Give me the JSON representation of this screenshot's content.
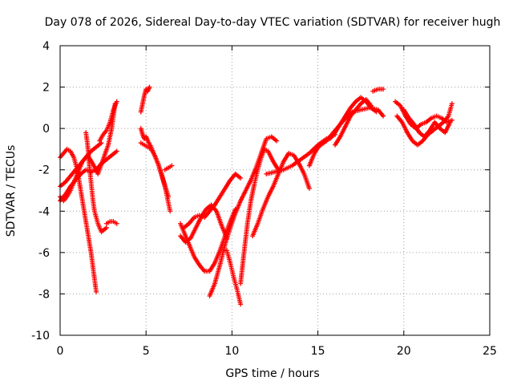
{
  "chart_data": {
    "type": "scatter",
    "title": "Day 078 of 2026, Sidereal Day-to-day VTEC variation (SDTVAR) for receiver hugh",
    "xlabel": "GPS time / hours",
    "ylabel": "SDTVAR / TECUs",
    "xlim": [
      0,
      25
    ],
    "ylim": [
      -10,
      4
    ],
    "xticks": [
      "0",
      "5",
      "10",
      "15",
      "20",
      "25"
    ],
    "yticks": [
      "4",
      "2",
      "0",
      "-2",
      "-4",
      "-6",
      "-8",
      "-10"
    ],
    "grid": true,
    "marker": "+",
    "color": "#ff0000",
    "series": [
      {
        "x": [
          0.0,
          0.3,
          0.6,
          0.9,
          1.2,
          1.5,
          1.8,
          2.1,
          2.4,
          2.7,
          3.0,
          3.3
        ],
        "y": [
          -3.5,
          -3.2,
          -2.8,
          -2.5,
          -2.2,
          -2.0,
          -2.1,
          -2.0,
          -1.7,
          -1.5,
          -1.3,
          -1.1
        ]
      },
      {
        "x": [
          0.0,
          0.2,
          0.4,
          0.6,
          0.8,
          1.0,
          1.2,
          1.5,
          1.8,
          2.1
        ],
        "y": [
          -1.4,
          -1.2,
          -1.0,
          -1.1,
          -1.4,
          -2.0,
          -3.0,
          -4.5,
          -6.0,
          -7.9
        ]
      },
      {
        "x": [
          0.0,
          0.3,
          0.6,
          0.9,
          1.2,
          1.5,
          1.8,
          2.1,
          2.4
        ],
        "y": [
          -2.8,
          -2.6,
          -2.3,
          -2.0,
          -1.7,
          -1.4,
          -1.1,
          -0.9,
          -0.7
        ]
      },
      {
        "x": [
          0.0,
          0.2,
          0.4,
          0.6,
          0.8,
          1.0,
          1.3,
          1.6,
          1.9,
          2.2,
          2.5,
          2.8,
          3.0,
          3.2
        ],
        "y": [
          -3.3,
          -3.5,
          -3.3,
          -3.0,
          -2.6,
          -2.2,
          -1.6,
          -1.3,
          -1.7,
          -2.2,
          -1.5,
          -0.8,
          0.0,
          1.2
        ]
      },
      {
        "x": [
          1.5,
          1.6,
          1.7,
          1.8,
          1.9,
          2.0,
          2.2,
          2.4,
          2.7
        ],
        "y": [
          -0.2,
          -0.8,
          -1.8,
          -2.6,
          -3.4,
          -4.0,
          -4.6,
          -5.0,
          -4.8
        ]
      },
      {
        "x": [
          2.7,
          2.9,
          3.1,
          3.3
        ],
        "y": [
          -4.6,
          -4.5,
          -4.5,
          -4.6
        ]
      },
      {
        "x": [
          2.3,
          2.5,
          2.7,
          2.9,
          3.1,
          3.3
        ],
        "y": [
          -0.6,
          -0.3,
          -0.1,
          0.3,
          0.9,
          1.3
        ]
      },
      {
        "x": [
          4.7,
          4.8,
          4.9,
          5.0,
          5.1,
          5.2
        ],
        "y": [
          0.8,
          1.2,
          1.6,
          1.9,
          1.8,
          2.0
        ]
      },
      {
        "x": [
          4.7,
          4.8,
          4.9,
          5.0,
          5.1,
          5.3,
          5.5,
          5.7,
          6.0,
          6.3
        ],
        "y": [
          0.0,
          -0.3,
          -0.5,
          -0.4,
          -0.6,
          -0.9,
          -1.3,
          -1.7,
          -2.5,
          -3.3
        ]
      },
      {
        "x": [
          4.7,
          4.9,
          5.1,
          5.3,
          5.5,
          5.7,
          5.9,
          6.1,
          6.4
        ],
        "y": [
          -0.7,
          -0.8,
          -0.9,
          -1.0,
          -1.3,
          -1.7,
          -2.2,
          -2.8,
          -4.0
        ]
      },
      {
        "x": [
          6.1,
          6.3,
          6.5
        ],
        "y": [
          -2.0,
          -1.9,
          -1.8
        ]
      },
      {
        "x": [
          7.0,
          7.2,
          7.5,
          7.8,
          8.1,
          8.4,
          8.7,
          9.0,
          9.3,
          9.6,
          9.9,
          10.2
        ],
        "y": [
          -4.6,
          -5.0,
          -5.6,
          -6.2,
          -6.6,
          -6.9,
          -6.9,
          -6.5,
          -5.9,
          -5.2,
          -4.5,
          -3.9
        ]
      },
      {
        "x": [
          7.2,
          7.5,
          7.8,
          8.1,
          8.4,
          8.7,
          9.0,
          9.3,
          9.6,
          9.9,
          10.2,
          10.5
        ],
        "y": [
          -4.8,
          -4.6,
          -4.3,
          -4.2,
          -4.3,
          -4.0,
          -3.7,
          -3.3,
          -2.9,
          -2.5,
          -2.2,
          -2.4
        ]
      },
      {
        "x": [
          7.0,
          7.3,
          7.6,
          7.9,
          8.2,
          8.5,
          8.8,
          9.1,
          9.4,
          9.7
        ],
        "y": [
          -5.2,
          -5.5,
          -5.3,
          -4.8,
          -4.3,
          -3.9,
          -3.7,
          -4.0,
          -4.7,
          -5.3
        ]
      },
      {
        "x": [
          9.7,
          9.9,
          10.1,
          10.3,
          10.5
        ],
        "y": [
          -5.9,
          -6.5,
          -7.2,
          -7.8,
          -8.5
        ]
      },
      {
        "x": [
          8.7,
          9.0,
          9.3,
          9.6,
          9.9,
          10.2,
          10.5,
          10.8,
          11.1,
          11.4,
          11.7,
          12.0,
          12.3,
          12.6
        ],
        "y": [
          -8.1,
          -7.5,
          -6.6,
          -5.6,
          -4.8,
          -4.1,
          -3.5,
          -3.0,
          -2.5,
          -1.9,
          -1.2,
          -0.5,
          -0.4,
          -0.6
        ]
      },
      {
        "x": [
          10.5,
          10.7,
          10.9,
          11.1,
          11.3,
          11.5,
          11.7,
          11.9,
          12.1,
          12.4,
          12.7
        ],
        "y": [
          -7.5,
          -6.0,
          -4.6,
          -3.5,
          -2.7,
          -2.0,
          -1.4,
          -1.0,
          -1.1,
          -1.6,
          -2.0
        ]
      },
      {
        "x": [
          11.2,
          11.5,
          11.8,
          12.1,
          12.4,
          12.7,
          13.0,
          13.3,
          13.6,
          13.9,
          14.2,
          14.5
        ],
        "y": [
          -5.2,
          -4.6,
          -3.9,
          -3.3,
          -2.8,
          -2.2,
          -1.6,
          -1.2,
          -1.3,
          -1.7,
          -2.2,
          -2.9
        ]
      },
      {
        "x": [
          12.0,
          12.5,
          13.0,
          13.5,
          14.0,
          14.5,
          15.0,
          15.5,
          16.0
        ],
        "y": [
          -2.2,
          -2.1,
          -2.0,
          -1.8,
          -1.5,
          -1.2,
          -0.8,
          -0.5,
          -0.3
        ]
      },
      {
        "x": [
          14.5,
          14.8,
          15.1,
          15.4,
          15.7,
          16.0,
          16.3,
          16.6,
          16.9,
          17.2,
          17.5,
          17.8,
          18.1,
          18.4
        ],
        "y": [
          -1.8,
          -1.2,
          -0.8,
          -0.6,
          -0.5,
          -0.2,
          0.2,
          0.6,
          1.0,
          1.3,
          1.5,
          1.3,
          1.0,
          0.8
        ]
      },
      {
        "x": [
          15.0,
          15.5,
          16.0,
          16.5,
          17.0,
          17.5,
          18.0,
          18.5,
          18.8
        ],
        "y": [
          -0.9,
          -0.6,
          -0.1,
          0.4,
          0.8,
          0.9,
          1.0,
          0.9,
          0.6
        ]
      },
      {
        "x": [
          16.0,
          16.3,
          16.6,
          16.9,
          17.2,
          17.5,
          17.8,
          18.1
        ],
        "y": [
          -0.8,
          -0.4,
          0.1,
          0.6,
          0.9,
          1.2,
          1.4,
          1.1
        ]
      },
      {
        "x": [
          18.2,
          18.5,
          18.8
        ],
        "y": [
          1.8,
          1.9,
          1.9
        ]
      },
      {
        "x": [
          19.5,
          19.8,
          20.1,
          20.4,
          20.7,
          21.0,
          21.3,
          21.6,
          21.9,
          22.2,
          22.5,
          22.8
        ],
        "y": [
          1.3,
          1.1,
          0.6,
          0.2,
          0.0,
          0.2,
          0.3,
          0.5,
          0.6,
          0.5,
          0.3,
          0.4
        ]
      },
      {
        "x": [
          19.6,
          19.9,
          20.2,
          20.5,
          20.8,
          21.1,
          21.4,
          21.7,
          22.0,
          22.3,
          22.6,
          22.8
        ],
        "y": [
          0.6,
          0.3,
          -0.2,
          -0.6,
          -0.8,
          -0.6,
          -0.3,
          -0.1,
          0.1,
          0.3,
          0.6,
          1.2
        ]
      },
      {
        "x": [
          20.0,
          20.3,
          20.6,
          20.9,
          21.2,
          21.5,
          21.8,
          22.1,
          22.4,
          22.7
        ],
        "y": [
          0.9,
          0.5,
          0.2,
          -0.2,
          -0.4,
          -0.1,
          0.3,
          0.0,
          -0.2,
          0.3
        ]
      }
    ]
  }
}
